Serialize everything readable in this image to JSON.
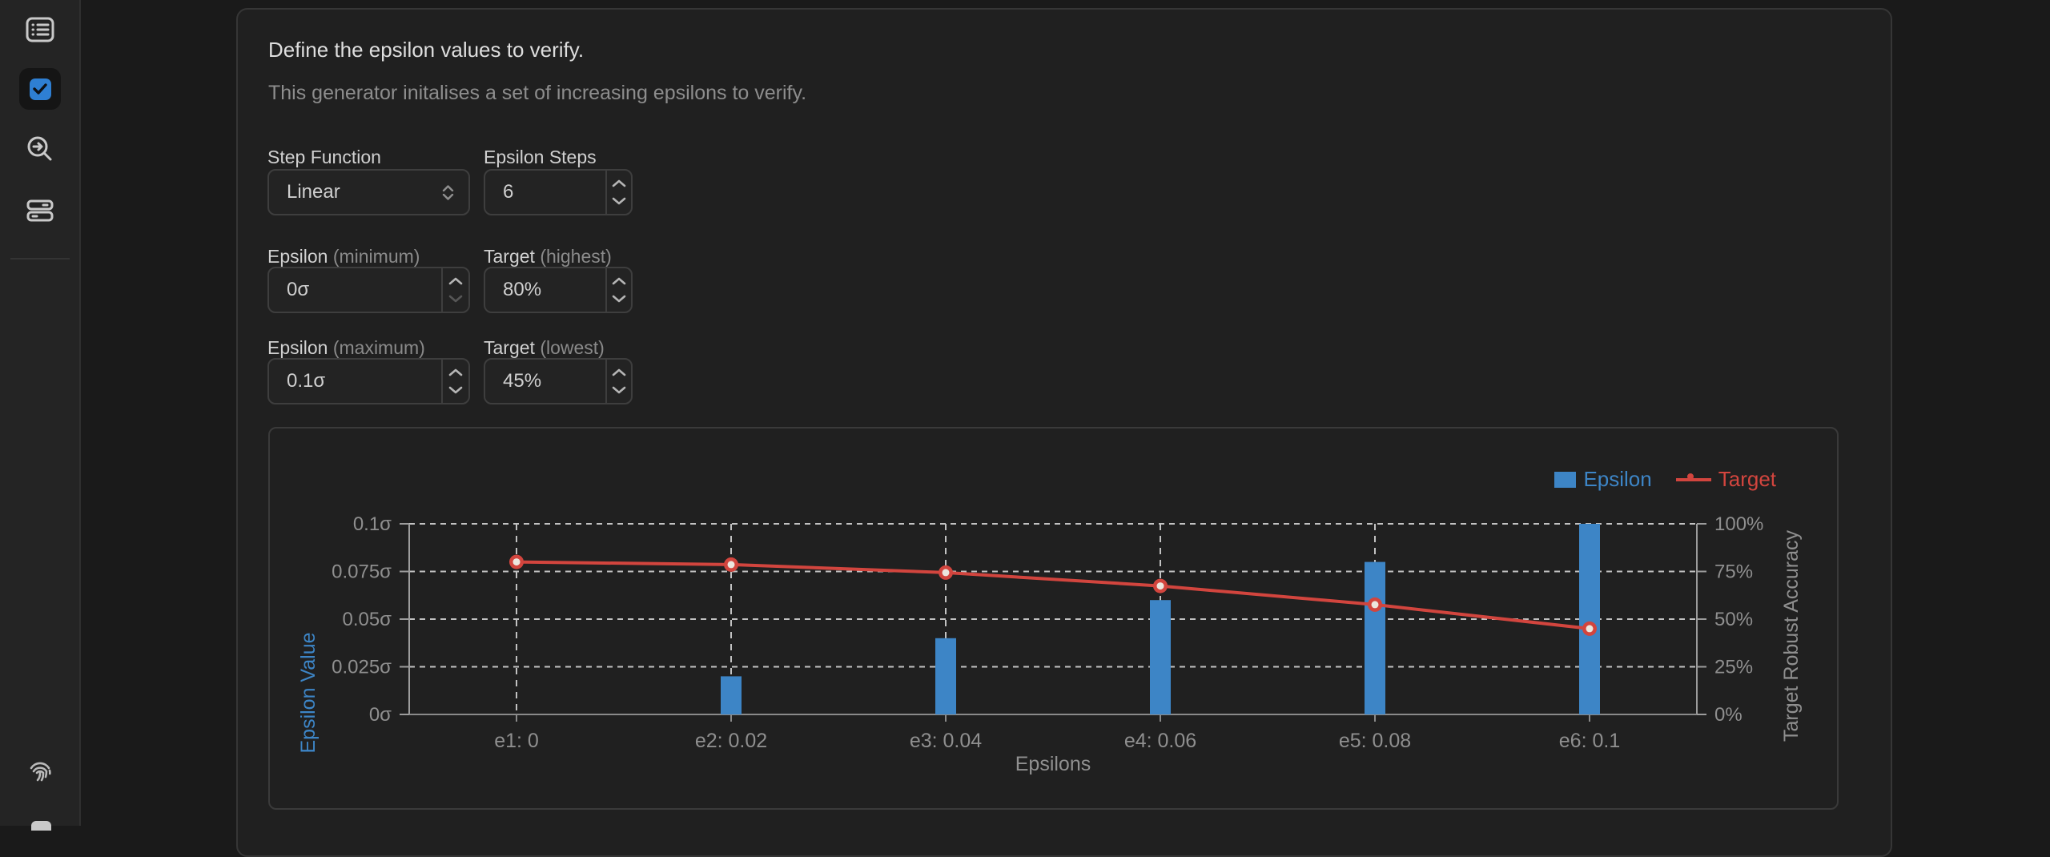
{
  "sidebar": {
    "items": [
      {
        "id": "list",
        "icon": "list-icon",
        "active": false
      },
      {
        "id": "verify",
        "icon": "checkbox-icon",
        "active": true
      },
      {
        "id": "inspect",
        "icon": "search-arrow-icon",
        "active": false
      },
      {
        "id": "servers",
        "icon": "server-icon",
        "active": false
      },
      {
        "id": "fingerprint",
        "icon": "fingerprint-icon",
        "active": false
      }
    ]
  },
  "panel": {
    "title": "Define the epsilon values to verify.",
    "subtitle": "This generator initalises a set of increasing epsilons to verify.",
    "fields": {
      "step_function": {
        "label": "Step Function",
        "value": "Linear"
      },
      "epsilon_steps": {
        "label": "Epsilon Steps",
        "value": "6"
      },
      "epsilon_min": {
        "label": "Epsilon",
        "sublabel": "(minimum)",
        "value": "0σ"
      },
      "target_high": {
        "label": "Target",
        "sublabel": "(highest)",
        "value": "80%"
      },
      "epsilon_max": {
        "label": "Epsilon",
        "sublabel": "(maximum)",
        "value": "0.1σ"
      },
      "target_low": {
        "label": "Target",
        "sublabel": "(lowest)",
        "value": "45%"
      }
    }
  },
  "chart_data": {
    "type": "bar+line",
    "categories": [
      "e1: 0",
      "e2: 0.02",
      "e3: 0.04",
      "e4: 0.06",
      "e5: 0.08",
      "e6: 0.1"
    ],
    "series": [
      {
        "name": "Epsilon",
        "type": "bar",
        "axis": "left",
        "color": "#3d85c6",
        "values": [
          0,
          0.02,
          0.04,
          0.06,
          0.08,
          0.1
        ]
      },
      {
        "name": "Target",
        "type": "line",
        "axis": "right",
        "color": "#d2453e",
        "values": [
          80,
          78.6,
          74.4,
          67.4,
          57.6,
          45
        ]
      }
    ],
    "xlabel": "Epsilons",
    "left_axis": {
      "title": "Epsilon Value",
      "color": "#3d85c6",
      "range": [
        0,
        0.1
      ],
      "tick_values": [
        0,
        0.025,
        0.05,
        0.075,
        0.1
      ],
      "tick_labels": [
        "0σ",
        "0.025σ",
        "0.05σ",
        "0.075σ",
        "0.1σ"
      ]
    },
    "right_axis": {
      "title": "Target Robust Accuracy",
      "color": "#8f8f8f",
      "range": [
        0,
        100
      ],
      "tick_values": [
        0,
        25,
        50,
        75,
        100
      ],
      "tick_labels": [
        "0%",
        "25%",
        "50%",
        "75%",
        "100%"
      ]
    },
    "legend": [
      "Epsilon",
      "Target"
    ],
    "legend_position": "top-right",
    "grid": true
  }
}
